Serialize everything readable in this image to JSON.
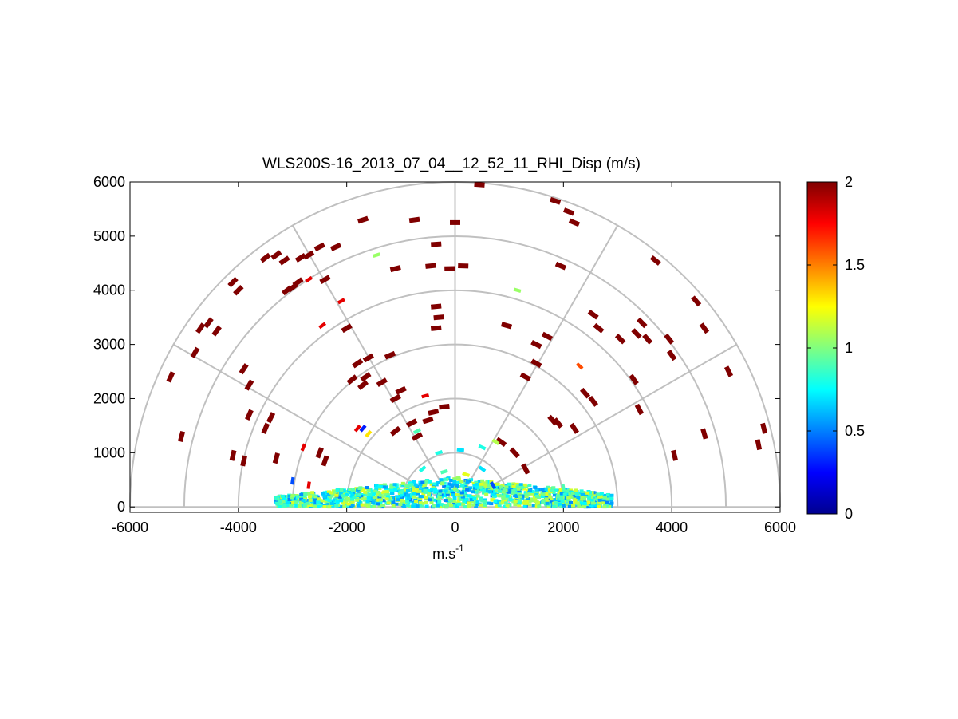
{
  "chart_data": {
    "type": "scatter",
    "subtype": "polar RHI scan (range-height indicator), half-disc",
    "title": "WLS200S-16_2013_07_04__12_52_11_RHI_Disp (m/s)",
    "xlabel": "m.s",
    "xlabel_superscript": "-1",
    "ylabel": "",
    "xlim": [
      -6000,
      6000
    ],
    "ylim": [
      -100,
      6000
    ],
    "x_ticks": [
      -6000,
      -4000,
      -2000,
      0,
      2000,
      4000,
      6000
    ],
    "x_tick_labels": [
      "-6000",
      "-4000",
      "-2000",
      "0",
      "2000",
      "4000",
      "6000"
    ],
    "y_ticks": [
      0,
      1000,
      2000,
      3000,
      4000,
      5000,
      6000
    ],
    "y_tick_labels": [
      "0",
      "1000",
      "2000",
      "3000",
      "4000",
      "5000",
      "6000"
    ],
    "polar_grid": {
      "range_rings": [
        1000,
        2000,
        3000,
        4000,
        5000,
        6000
      ],
      "spokes_deg": [
        0,
        30,
        60,
        90,
        120,
        150,
        180
      ]
    },
    "grid": "polar",
    "colorbar": {
      "colormap": "jet",
      "range": [
        0,
        2
      ],
      "ticks": [
        0,
        0.5,
        1,
        1.5,
        2
      ],
      "tick_labels": [
        "0",
        "0.5",
        "1",
        "1.5",
        "2"
      ],
      "position": "right"
    },
    "series": [
      {
        "values_note": "x (m), y (m), value (m/s)",
        "points": [
          [
            -5250,
            2400,
            2
          ],
          [
            -5050,
            1300,
            2
          ],
          [
            -4800,
            2850,
            2
          ],
          [
            -4700,
            3300,
            2
          ],
          [
            -4550,
            3400,
            2
          ],
          [
            -4400,
            3250,
            2
          ],
          [
            -4100,
            4150,
            2
          ],
          [
            -4000,
            4000,
            2
          ],
          [
            -3900,
            2550,
            2
          ],
          [
            -4100,
            950,
            2
          ],
          [
            -3900,
            850,
            2
          ],
          [
            -3800,
            2250,
            2
          ],
          [
            -3800,
            1700,
            2
          ],
          [
            -3500,
            4600,
            2
          ],
          [
            -3300,
            4650,
            2
          ],
          [
            -3150,
            4550,
            2
          ],
          [
            -3100,
            4000,
            2
          ],
          [
            -3000,
            4050,
            2
          ],
          [
            -2900,
            4150,
            2
          ],
          [
            -2850,
            4600,
            2
          ],
          [
            -2700,
            4650,
            2
          ],
          [
            -2500,
            4800,
            2
          ],
          [
            -2400,
            4200,
            2
          ],
          [
            -2200,
            4800,
            2
          ],
          [
            -1700,
            5300,
            2
          ],
          [
            -3400,
            1650,
            2
          ],
          [
            -3500,
            1450,
            2
          ],
          [
            -3300,
            900,
            2
          ],
          [
            -2500,
            1000,
            2
          ],
          [
            -2400,
            850,
            2
          ],
          [
            -2000,
            3300,
            2
          ],
          [
            -1900,
            2350,
            2
          ],
          [
            -1800,
            2650,
            2
          ],
          [
            -1650,
            2400,
            2
          ],
          [
            -1600,
            2750,
            2
          ],
          [
            -1700,
            2250,
            2
          ],
          [
            -1350,
            2300,
            2
          ],
          [
            -1200,
            2800,
            2
          ],
          [
            -1100,
            2000,
            2
          ],
          [
            -1000,
            2150,
            2
          ],
          [
            -1100,
            1400,
            2
          ],
          [
            -800,
            1550,
            2
          ],
          [
            -700,
            1300,
            2
          ],
          [
            -500,
            1600,
            2
          ],
          [
            -400,
            1750,
            2
          ],
          [
            -200,
            1850,
            2
          ],
          [
            -1100,
            4400,
            2
          ],
          [
            -750,
            5300,
            2
          ],
          [
            -450,
            4450,
            2
          ],
          [
            -350,
            4850,
            2
          ],
          [
            -350,
            3700,
            2
          ],
          [
            -350,
            3300,
            2
          ],
          [
            -300,
            3500,
            2
          ],
          [
            -100,
            4400,
            2
          ],
          [
            0,
            5250,
            2
          ],
          [
            150,
            4450,
            2
          ],
          [
            450,
            5950,
            2
          ],
          [
            850,
            1200,
            2
          ],
          [
            1100,
            1000,
            2
          ],
          [
            1300,
            700,
            2
          ],
          [
            950,
            3350,
            2
          ],
          [
            1300,
            2400,
            2
          ],
          [
            1500,
            2650,
            2
          ],
          [
            1500,
            3000,
            2
          ],
          [
            1700,
            3150,
            2
          ],
          [
            1800,
            1600,
            2
          ],
          [
            1900,
            1550,
            2
          ],
          [
            1950,
            4450,
            2
          ],
          [
            1850,
            5650,
            2
          ],
          [
            2100,
            5450,
            2
          ],
          [
            2200,
            5250,
            2
          ],
          [
            2200,
            1450,
            2
          ],
          [
            2400,
            2100,
            2
          ],
          [
            2550,
            3550,
            2
          ],
          [
            2650,
            3300,
            2
          ],
          [
            2550,
            1950,
            2
          ],
          [
            3050,
            3100,
            2
          ],
          [
            3300,
            2350,
            2
          ],
          [
            3350,
            3200,
            2
          ],
          [
            3450,
            3400,
            2
          ],
          [
            3400,
            1800,
            2
          ],
          [
            3550,
            3100,
            2
          ],
          [
            3700,
            4550,
            2
          ],
          [
            3950,
            3100,
            2
          ],
          [
            4000,
            2800,
            2
          ],
          [
            4050,
            950,
            2
          ],
          [
            4450,
            3800,
            2
          ],
          [
            4600,
            3300,
            2
          ],
          [
            4600,
            1350,
            2
          ],
          [
            5050,
            2500,
            2
          ],
          [
            5600,
            1150,
            2
          ],
          [
            5700,
            1450,
            2
          ],
          [
            -2700,
            4200,
            1.8
          ],
          [
            -2450,
            3350,
            1.8
          ],
          [
            -2100,
            3800,
            1.8
          ],
          [
            -1800,
            1450,
            1.8
          ],
          [
            -2800,
            1100,
            1.8
          ],
          [
            -550,
            2050,
            1.8
          ],
          [
            2300,
            2600,
            1.6
          ],
          [
            -1450,
            4650,
            1.05
          ],
          [
            1150,
            4000,
            1.05
          ],
          [
            -1700,
            1450,
            0.3
          ],
          [
            -1600,
            1350,
            1.3
          ],
          [
            -700,
            1400,
            0.9
          ],
          [
            -300,
            1000,
            0.8
          ],
          [
            100,
            1050,
            0.7
          ],
          [
            500,
            1100,
            0.8
          ],
          [
            750,
            1200,
            1.1
          ],
          [
            -600,
            700,
            0.8
          ],
          [
            -200,
            650,
            0.9
          ],
          [
            200,
            600,
            1.2
          ],
          [
            500,
            700,
            0.7
          ],
          [
            700,
            400,
            0.4
          ],
          [
            2000,
            350,
            0.9
          ],
          [
            -3000,
            480,
            0.4
          ],
          [
            -2700,
            400,
            1.8
          ]
        ]
      }
    ],
    "near_ground_band": {
      "x_range": [
        -3300,
        2900
      ],
      "y_range": [
        0,
        550
      ],
      "value_range": [
        0.5,
        1.2
      ],
      "dominant_color": "cyan"
    },
    "colors": {
      "grid": "#c0c0c0",
      "axis": "#000000"
    }
  }
}
